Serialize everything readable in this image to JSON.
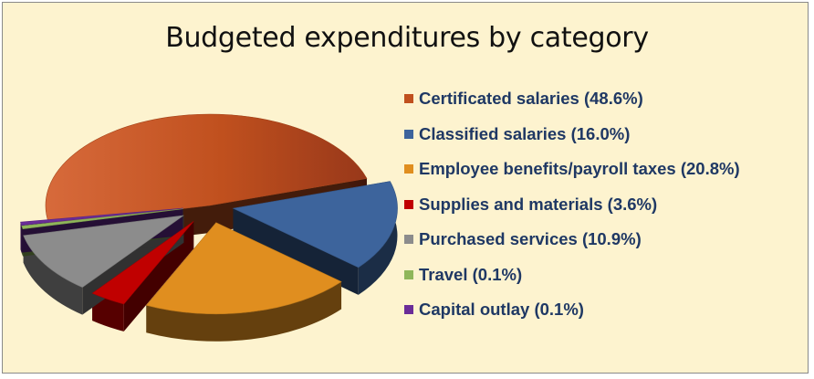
{
  "chart_data": {
    "type": "pie",
    "title": "Budgeted expenditures by category",
    "legend_position": "right",
    "slices": [
      {
        "label": "Certificated salaries (48.6%)",
        "value": 48.6,
        "color": "#c0501e"
      },
      {
        "label": "Classified salaries (16.0%)",
        "value": 16.0,
        "color": "#3d649c"
      },
      {
        "label": "Employee benefits/payroll taxes (20.8%)",
        "value": 20.8,
        "color": "#e08e1f"
      },
      {
        "label": "Supplies and materials (3.6%)",
        "value": 3.6,
        "color": "#c00000"
      },
      {
        "label": "Purchased services (10.9%)",
        "value": 10.9,
        "color": "#8c8c8c"
      },
      {
        "label": "Travel (0.1%)",
        "value": 0.1,
        "color": "#8fb65a"
      },
      {
        "label": "Capital outlay (0.1%)",
        "value": 0.1,
        "color": "#6a2c98"
      }
    ]
  }
}
